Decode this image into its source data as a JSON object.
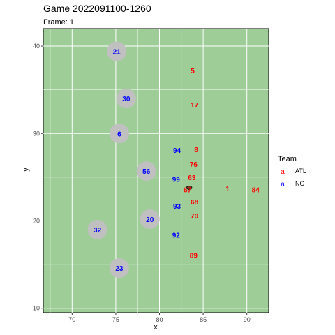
{
  "chart_data": {
    "type": "scatter",
    "title": "Game 2022091100-1260",
    "subtitle": "Frame: 1",
    "xlabel": "x",
    "ylabel": "y",
    "xlim": [
      66.7,
      92.5
    ],
    "ylim": [
      9.5,
      42.0
    ],
    "x_ticks": [
      70,
      75,
      80,
      85,
      90
    ],
    "y_ticks": [
      10,
      20,
      30,
      40
    ],
    "grid": true,
    "background": "#9ecd98",
    "legend": {
      "title": "Team",
      "position": "right",
      "key_glyph": "a",
      "entries": [
        {
          "label": "ATL",
          "color": "#ff0000"
        },
        {
          "label": "NO",
          "color": "#0000ff"
        }
      ]
    },
    "highlight_color": "#c0c0c0",
    "series": [
      {
        "name": "ATL",
        "color": "#ff0000",
        "points": [
          {
            "x": 83.8,
            "y": 37.2,
            "label": "5"
          },
          {
            "x": 84.0,
            "y": 33.3,
            "label": "17"
          },
          {
            "x": 84.2,
            "y": 28.2,
            "label": "8"
          },
          {
            "x": 83.9,
            "y": 26.5,
            "label": "76"
          },
          {
            "x": 83.7,
            "y": 25.0,
            "label": "63"
          },
          {
            "x": 83.2,
            "y": 23.6,
            "label": "67"
          },
          {
            "x": 87.8,
            "y": 23.7,
            "label": "1"
          },
          {
            "x": 91.0,
            "y": 23.6,
            "label": "84"
          },
          {
            "x": 84.0,
            "y": 22.2,
            "label": "68"
          },
          {
            "x": 84.0,
            "y": 20.6,
            "label": "70"
          },
          {
            "x": 83.9,
            "y": 16.1,
            "label": "89"
          }
        ]
      },
      {
        "name": "NO",
        "color": "#0000ff",
        "points": [
          {
            "x": 75.1,
            "y": 39.4,
            "label": "21",
            "highlight": true
          },
          {
            "x": 76.2,
            "y": 34.0,
            "label": "30",
            "highlight": true
          },
          {
            "x": 75.4,
            "y": 30.0,
            "label": "6",
            "highlight": true
          },
          {
            "x": 82.0,
            "y": 28.1,
            "label": "94"
          },
          {
            "x": 78.5,
            "y": 25.7,
            "label": "56",
            "highlight": true
          },
          {
            "x": 81.9,
            "y": 24.8,
            "label": "99"
          },
          {
            "x": 82.0,
            "y": 21.7,
            "label": "93"
          },
          {
            "x": 78.9,
            "y": 20.2,
            "label": "20",
            "highlight": true
          },
          {
            "x": 72.9,
            "y": 19.0,
            "label": "32",
            "highlight": true
          },
          {
            "x": 81.9,
            "y": 18.4,
            "label": "92"
          },
          {
            "x": 75.4,
            "y": 14.6,
            "label": "23",
            "highlight": true
          }
        ]
      }
    ],
    "ball": {
      "x": 83.4,
      "y": 23.8
    }
  }
}
